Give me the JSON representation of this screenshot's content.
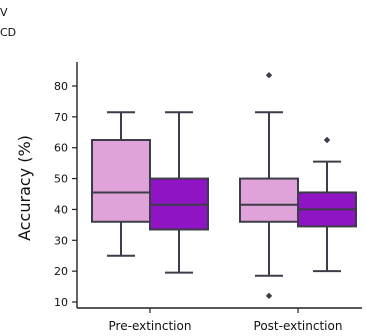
{
  "legend_fragments": [
    "V",
    "CD"
  ],
  "chart_data": {
    "type": "box",
    "title": "",
    "xlabel": "",
    "ylabel": "Accuracy (%)",
    "ylim": [
      9,
      88
    ],
    "yticks": [
      10,
      20,
      30,
      40,
      50,
      60,
      70,
      80
    ],
    "categories": [
      "Pre-extinction",
      "Post-extinction"
    ],
    "grid": false,
    "colors": {
      "light": "#dfa3d9",
      "dark": "#8e14c4",
      "line": "#3d3d4a"
    },
    "series": [
      {
        "color": "#dfa3d9",
        "boxes": [
          {
            "category": "Pre-extinction",
            "whisker_low": 25,
            "q1": 36,
            "median": 45.5,
            "q3": 62.5,
            "whisker_high": 71.5,
            "outliers": []
          },
          {
            "category": "Post-extinction",
            "whisker_low": 18.5,
            "q1": 36,
            "median": 41.5,
            "q3": 50,
            "whisker_high": 71.5,
            "outliers": [
              12,
              83.5
            ]
          }
        ]
      },
      {
        "color": "#8e14c4",
        "boxes": [
          {
            "category": "Pre-extinction",
            "whisker_low": 19.5,
            "q1": 33.5,
            "median": 41.5,
            "q3": 50,
            "whisker_high": 71.5,
            "outliers": []
          },
          {
            "category": "Post-extinction",
            "whisker_low": 20,
            "q1": 34.5,
            "median": 40,
            "q3": 45.5,
            "whisker_high": 55.5,
            "outliers": [
              62.5
            ]
          }
        ]
      }
    ]
  }
}
